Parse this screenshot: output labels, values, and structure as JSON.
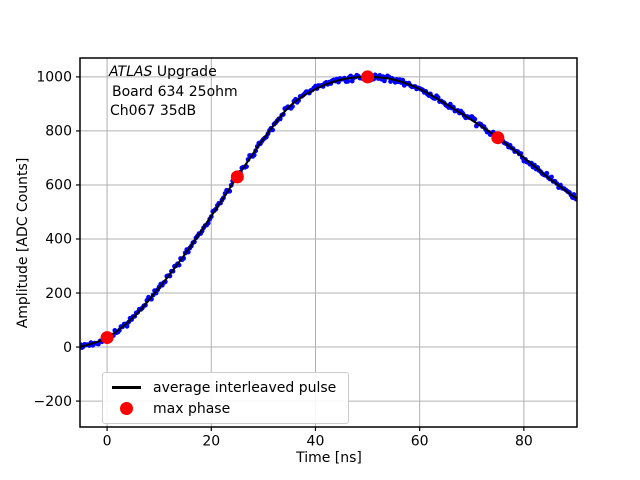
{
  "annotation": {
    "line1_italic": "ATLAS",
    "line1_rest": " Upgrade",
    "line2": "Board 634 25ohm",
    "line3": "Ch067 35dB"
  },
  "legend": {
    "items": [
      {
        "swatch": "black-line",
        "color": "#000000",
        "label": "average interleaved pulse"
      },
      {
        "swatch": "red-dot",
        "color": "#ff0000",
        "label": "max phase"
      }
    ]
  },
  "chart_data": {
    "type": "line",
    "xlabel": "Time [ns]",
    "ylabel": "Amplitude [ADC Counts]",
    "xlim": [
      -5.2,
      90.2
    ],
    "ylim": [
      -296,
      1070
    ],
    "grid": true,
    "legend_position": "lower-left",
    "xticks": [
      {
        "v": 0,
        "label": "0"
      },
      {
        "v": 20,
        "label": "20"
      },
      {
        "v": 40,
        "label": "40"
      },
      {
        "v": 60,
        "label": "60"
      },
      {
        "v": 80,
        "label": "80"
      }
    ],
    "yticks": [
      {
        "v": -200,
        "label": "−200"
      },
      {
        "v": 0,
        "label": "0"
      },
      {
        "v": 200,
        "label": "200"
      },
      {
        "v": 400,
        "label": "400"
      },
      {
        "v": 600,
        "label": "600"
      },
      {
        "v": 800,
        "label": "800"
      },
      {
        "v": 1000,
        "label": "1000"
      }
    ],
    "series": [
      {
        "name": "average interleaved pulse",
        "type": "line",
        "color": "#000000",
        "line_width": 2,
        "points": [
          [
            -5.2,
            0
          ],
          [
            0,
            35
          ],
          [
            5,
            110
          ],
          [
            10,
            220
          ],
          [
            15,
            345
          ],
          [
            20,
            485
          ],
          [
            25,
            630
          ],
          [
            30,
            770
          ],
          [
            35,
            890
          ],
          [
            40,
            955
          ],
          [
            45,
            990
          ],
          [
            50,
            1000
          ],
          [
            55,
            990
          ],
          [
            60,
            955
          ],
          [
            65,
            900
          ],
          [
            70,
            840
          ],
          [
            75,
            775
          ],
          [
            80,
            700
          ],
          [
            85,
            622
          ],
          [
            90.2,
            548
          ]
        ]
      },
      {
        "name": "interleaved samples band",
        "type": "scatter-band",
        "color": "#0000ff",
        "marker_radius": 2.4,
        "jitter": 14,
        "step_ns": 0.3
      },
      {
        "name": "max phase",
        "type": "scatter",
        "color": "#ff0000",
        "marker_radius": 6.5,
        "points": [
          [
            0,
            35
          ],
          [
            25,
            630
          ],
          [
            50,
            1000
          ],
          [
            75,
            775
          ]
        ]
      }
    ],
    "colors": {
      "grid": "#b0b0b0",
      "frame": "#000000",
      "background": "#ffffff"
    }
  }
}
